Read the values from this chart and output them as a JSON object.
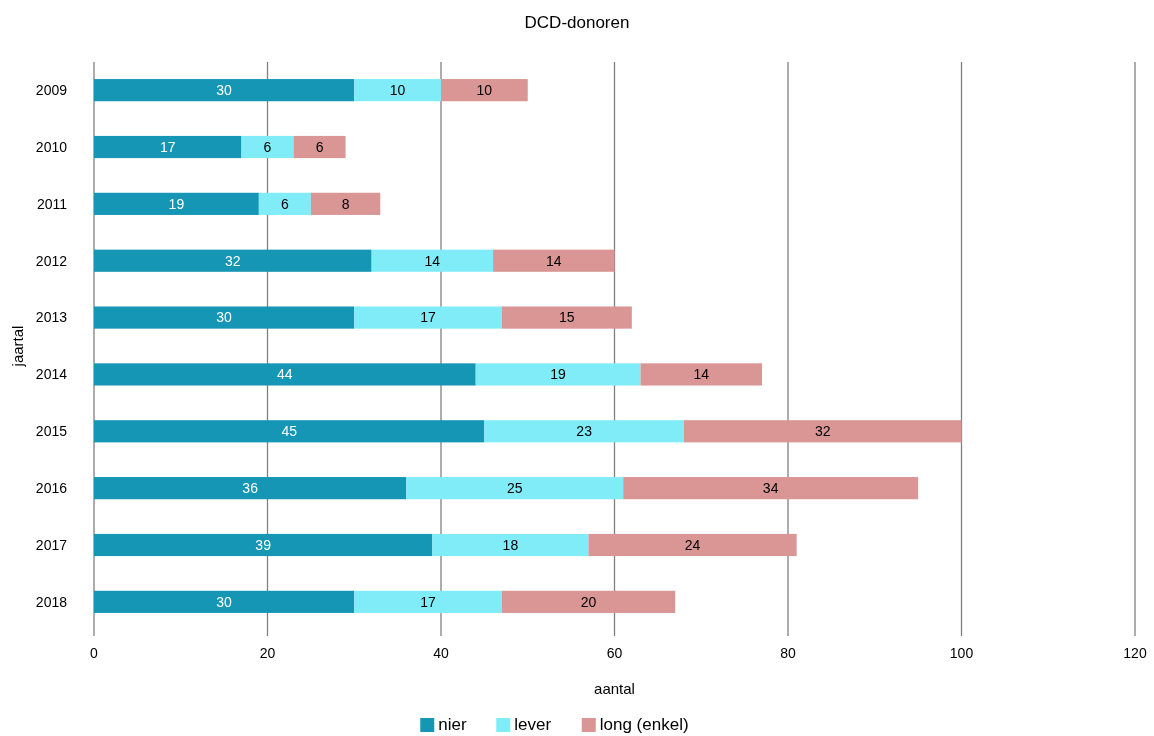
{
  "chart_data": {
    "type": "bar",
    "title": "DCD-donoren",
    "xlabel": "aantal",
    "ylabel": "jaartal",
    "orientation": "horizontal",
    "stacked": true,
    "data_labels": true,
    "grid": "x",
    "legend": "bottom",
    "categories": [
      "2009",
      "2010",
      "2011",
      "2012",
      "2013",
      "2014",
      "2015",
      "2016",
      "2017",
      "2018"
    ],
    "xlim": [
      0,
      120
    ],
    "xticks": [
      0,
      20,
      40,
      60,
      80,
      100,
      120
    ],
    "series": [
      {
        "name": "nier",
        "color": "#1496b4",
        "values": [
          30,
          17,
          19,
          32,
          30,
          44,
          45,
          36,
          39,
          30
        ]
      },
      {
        "name": "lever",
        "color": "#80ecf8",
        "values": [
          10,
          6,
          6,
          14,
          17,
          19,
          23,
          25,
          18,
          17
        ]
      },
      {
        "name": "long (enkel)",
        "color": "#d99694",
        "values": [
          10,
          6,
          8,
          14,
          15,
          14,
          32,
          34,
          24,
          20
        ]
      }
    ]
  }
}
